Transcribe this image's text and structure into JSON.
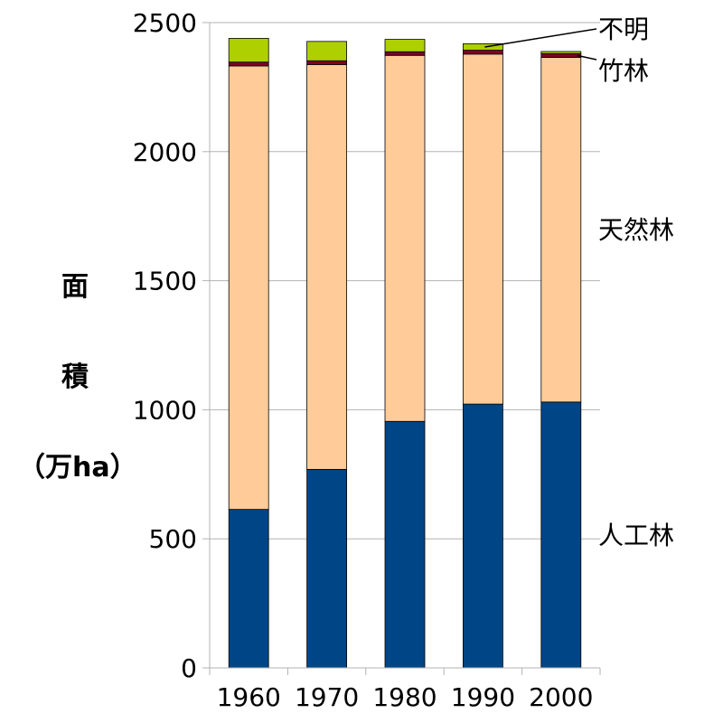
{
  "chart_data": {
    "type": "bar",
    "stacked": true,
    "categories": [
      "1960",
      "1970",
      "1980",
      "1990",
      "2000"
    ],
    "series": [
      {
        "name": "人工林",
        "color": "#004586",
        "values": [
          614,
          769,
          955,
          1022,
          1030
        ]
      },
      {
        "name": "天然林",
        "color": "#ffcc99",
        "values": [
          1718,
          1568,
          1418,
          1356,
          1335
        ]
      },
      {
        "name": "竹林",
        "color": "#7e0021",
        "values": [
          15,
          15,
          14,
          15,
          15
        ]
      },
      {
        "name": "不明",
        "color": "#aecf00",
        "values": [
          92,
          75,
          48,
          25,
          8
        ]
      }
    ],
    "ylabel": [
      "面",
      "積",
      "（万ha）"
    ],
    "ylim": [
      0,
      2500
    ],
    "yticks": [
      0,
      500,
      1000,
      1500,
      2000,
      2500
    ],
    "grid": true,
    "legend_placement": "right, inline labels"
  }
}
